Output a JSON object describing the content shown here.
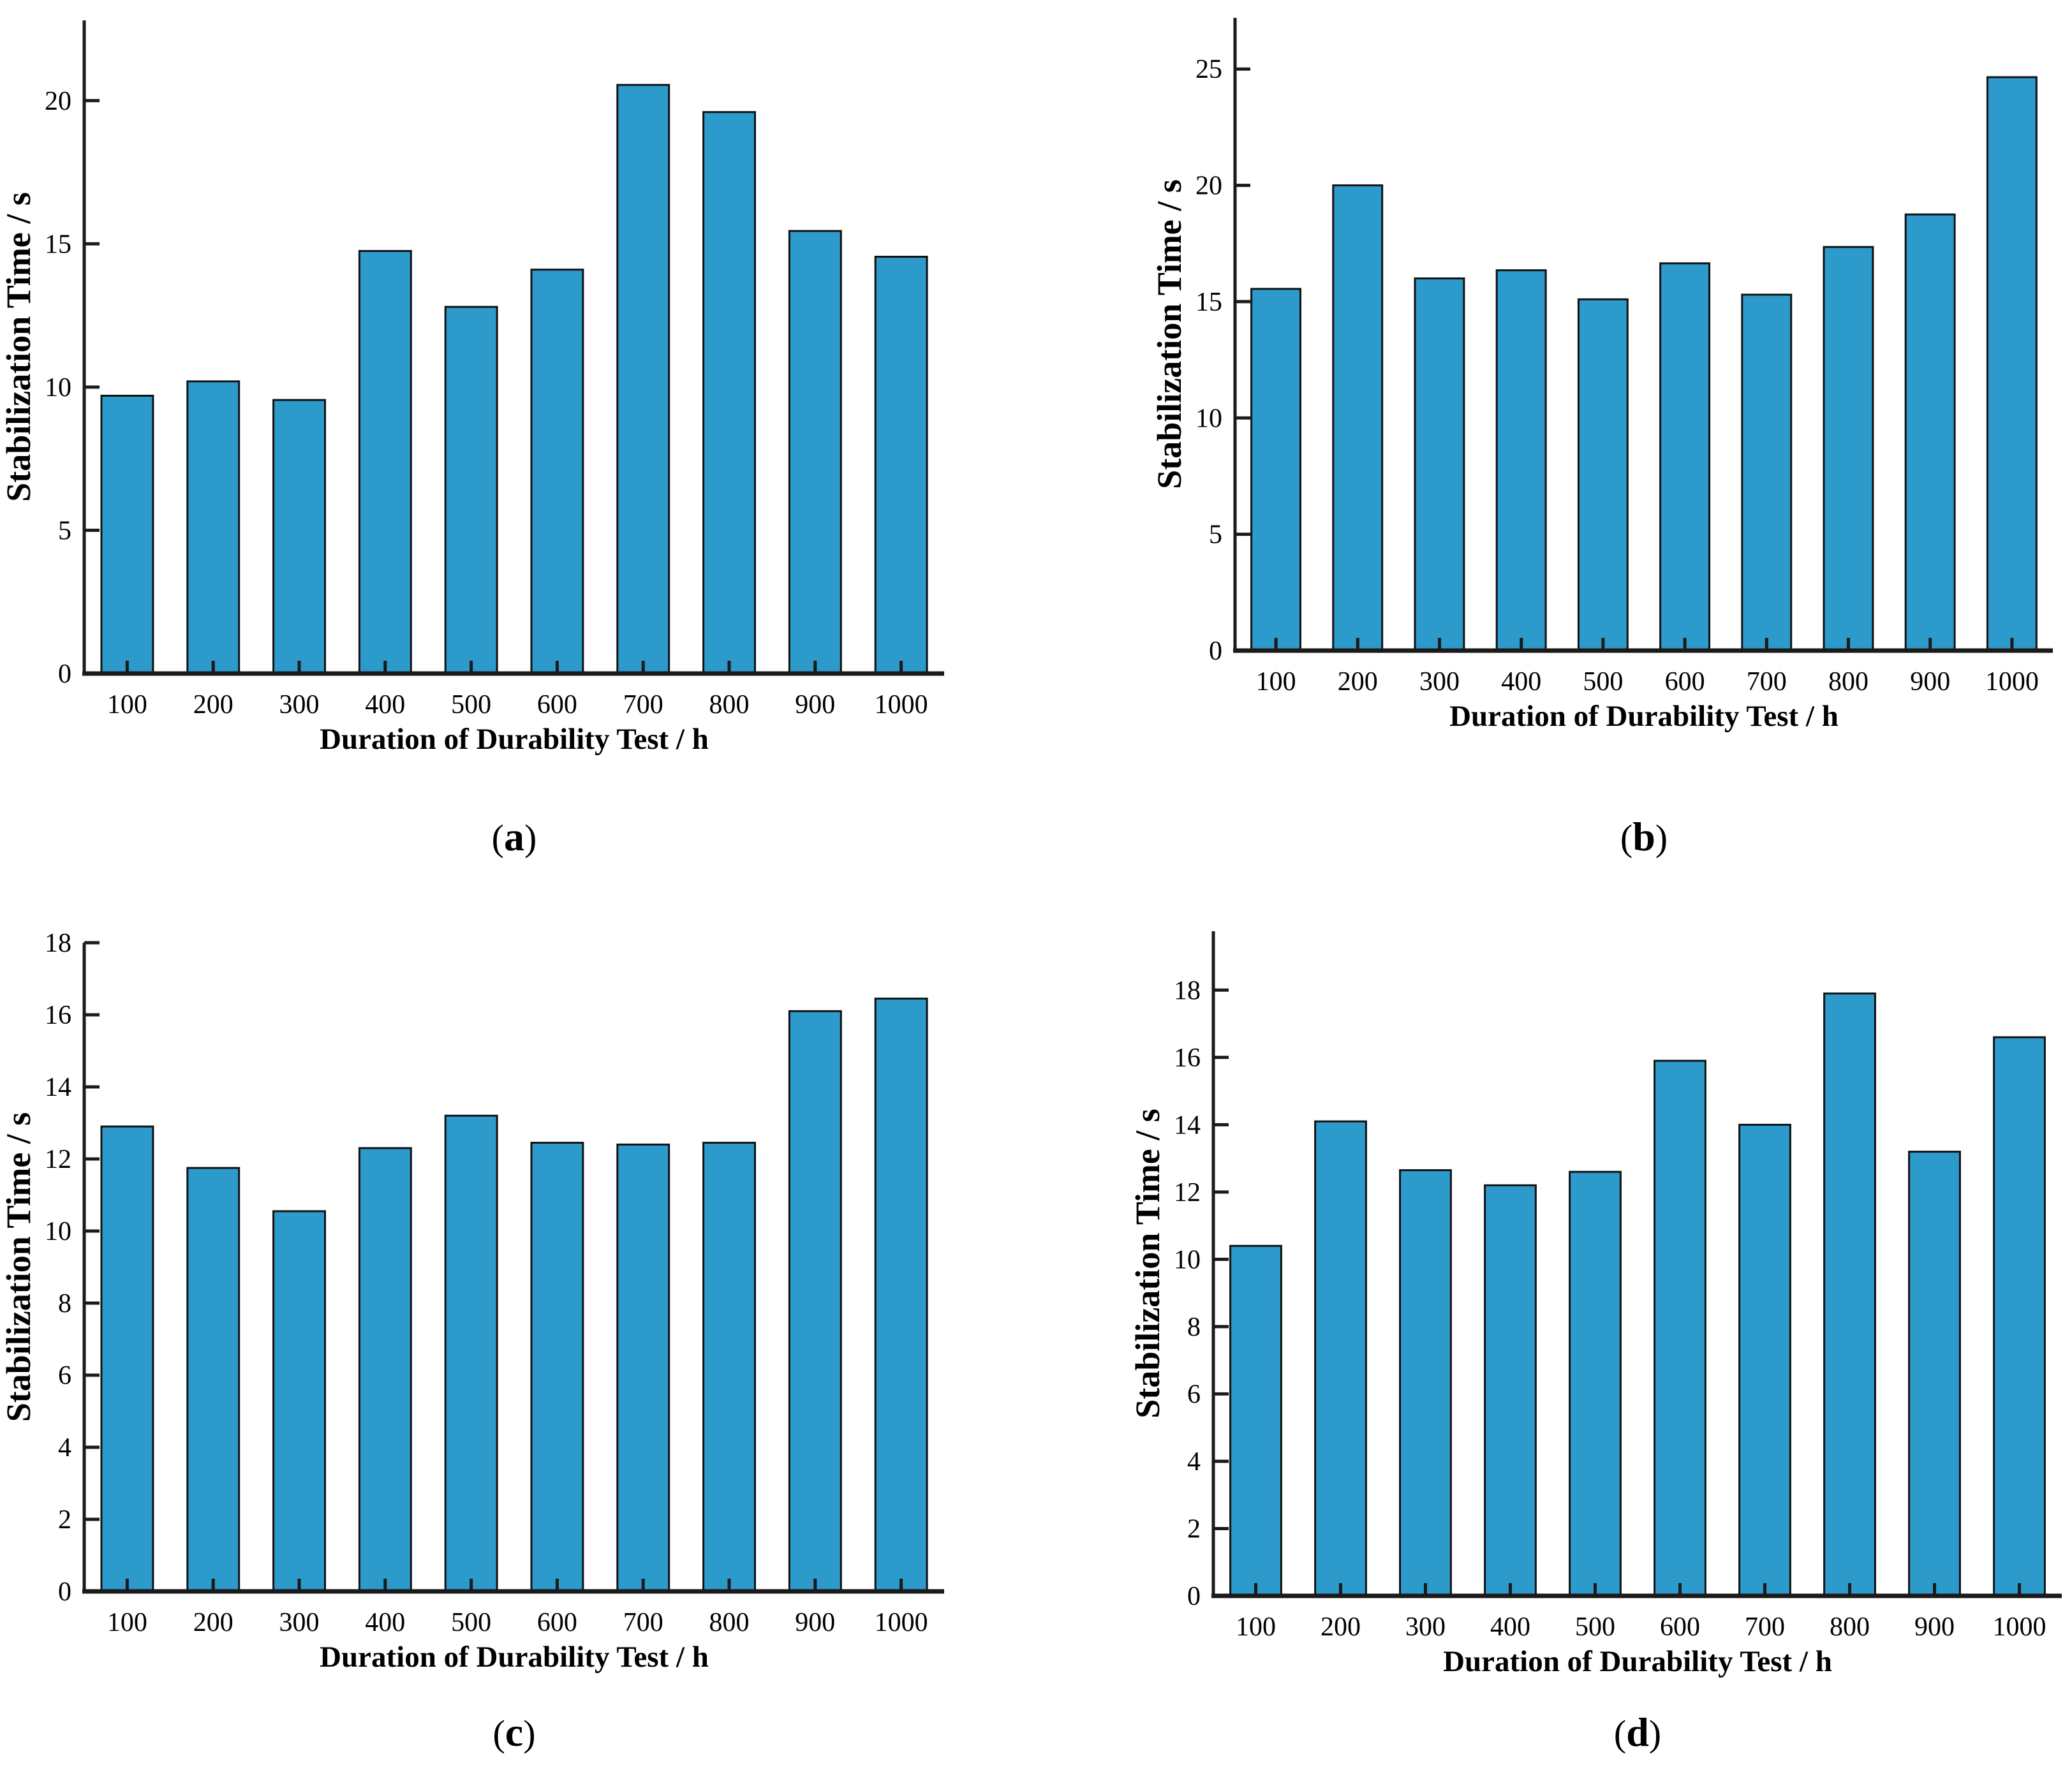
{
  "figure": {
    "background": "#ffffff",
    "colors": {
      "bar_fill": "#2D9ACC",
      "bar_edge": "#111111",
      "axis": "#1A1A1A",
      "text": "#000000"
    }
  },
  "chart_data": [
    {
      "id": "a",
      "type": "bar",
      "caption": {
        "prefix": "(",
        "letter": "a",
        "suffix": ")"
      },
      "xlabel": "Duration of Durability Test / h",
      "ylabel": "Stabilization Time / s",
      "categories": [
        "100",
        "200",
        "300",
        "400",
        "500",
        "600",
        "700",
        "800",
        "900",
        "1000"
      ],
      "values": [
        9.7,
        10.2,
        9.55,
        14.75,
        12.8,
        14.1,
        20.55,
        19.6,
        15.45,
        14.55
      ],
      "ylim": [
        0,
        22.8
      ],
      "yticks": [
        0,
        5,
        10,
        15,
        20
      ],
      "grid": false,
      "legend": "none"
    },
    {
      "id": "b",
      "type": "bar",
      "caption": {
        "prefix": "(",
        "letter": "b",
        "suffix": ")"
      },
      "xlabel": "Duration of Durability Test / h",
      "ylabel": "Stabilization Time / s",
      "categories": [
        "100",
        "200",
        "300",
        "400",
        "500",
        "600",
        "700",
        "800",
        "900",
        "1000"
      ],
      "values": [
        15.55,
        20.0,
        16.0,
        16.35,
        15.1,
        16.65,
        15.3,
        17.35,
        18.75,
        24.65
      ],
      "ylim": [
        0,
        27.2
      ],
      "yticks": [
        0,
        5,
        10,
        15,
        20,
        25
      ],
      "grid": false,
      "legend": "none"
    },
    {
      "id": "c",
      "type": "bar",
      "caption": {
        "prefix": "(",
        "letter": "c",
        "suffix": ")"
      },
      "xlabel": "Duration of Durability Test / h",
      "ylabel": "Stabilization Time / s",
      "categories": [
        "100",
        "200",
        "300",
        "400",
        "500",
        "600",
        "700",
        "800",
        "900",
        "1000"
      ],
      "values": [
        12.9,
        11.75,
        10.55,
        12.3,
        13.2,
        12.45,
        12.4,
        12.45,
        16.1,
        16.45
      ],
      "ylim": [
        0,
        18.0
      ],
      "yticks": [
        0,
        2,
        4,
        6,
        8,
        10,
        12,
        14,
        16,
        18
      ],
      "grid": false,
      "legend": "none"
    },
    {
      "id": "d",
      "type": "bar",
      "caption": {
        "prefix": "(",
        "letter": "d",
        "suffix": ")"
      },
      "xlabel": "Duration of Durability Test / h",
      "ylabel": "Stabilization Time / s",
      "categories": [
        "100",
        "200",
        "300",
        "400",
        "500",
        "600",
        "700",
        "800",
        "900",
        "1000"
      ],
      "values": [
        10.4,
        14.1,
        12.65,
        12.2,
        12.6,
        15.9,
        14.0,
        17.9,
        13.2,
        16.6
      ],
      "ylim": [
        0,
        19.75
      ],
      "yticks": [
        0,
        2,
        4,
        6,
        8,
        10,
        12,
        14,
        16,
        18
      ],
      "grid": false,
      "legend": "none"
    }
  ]
}
